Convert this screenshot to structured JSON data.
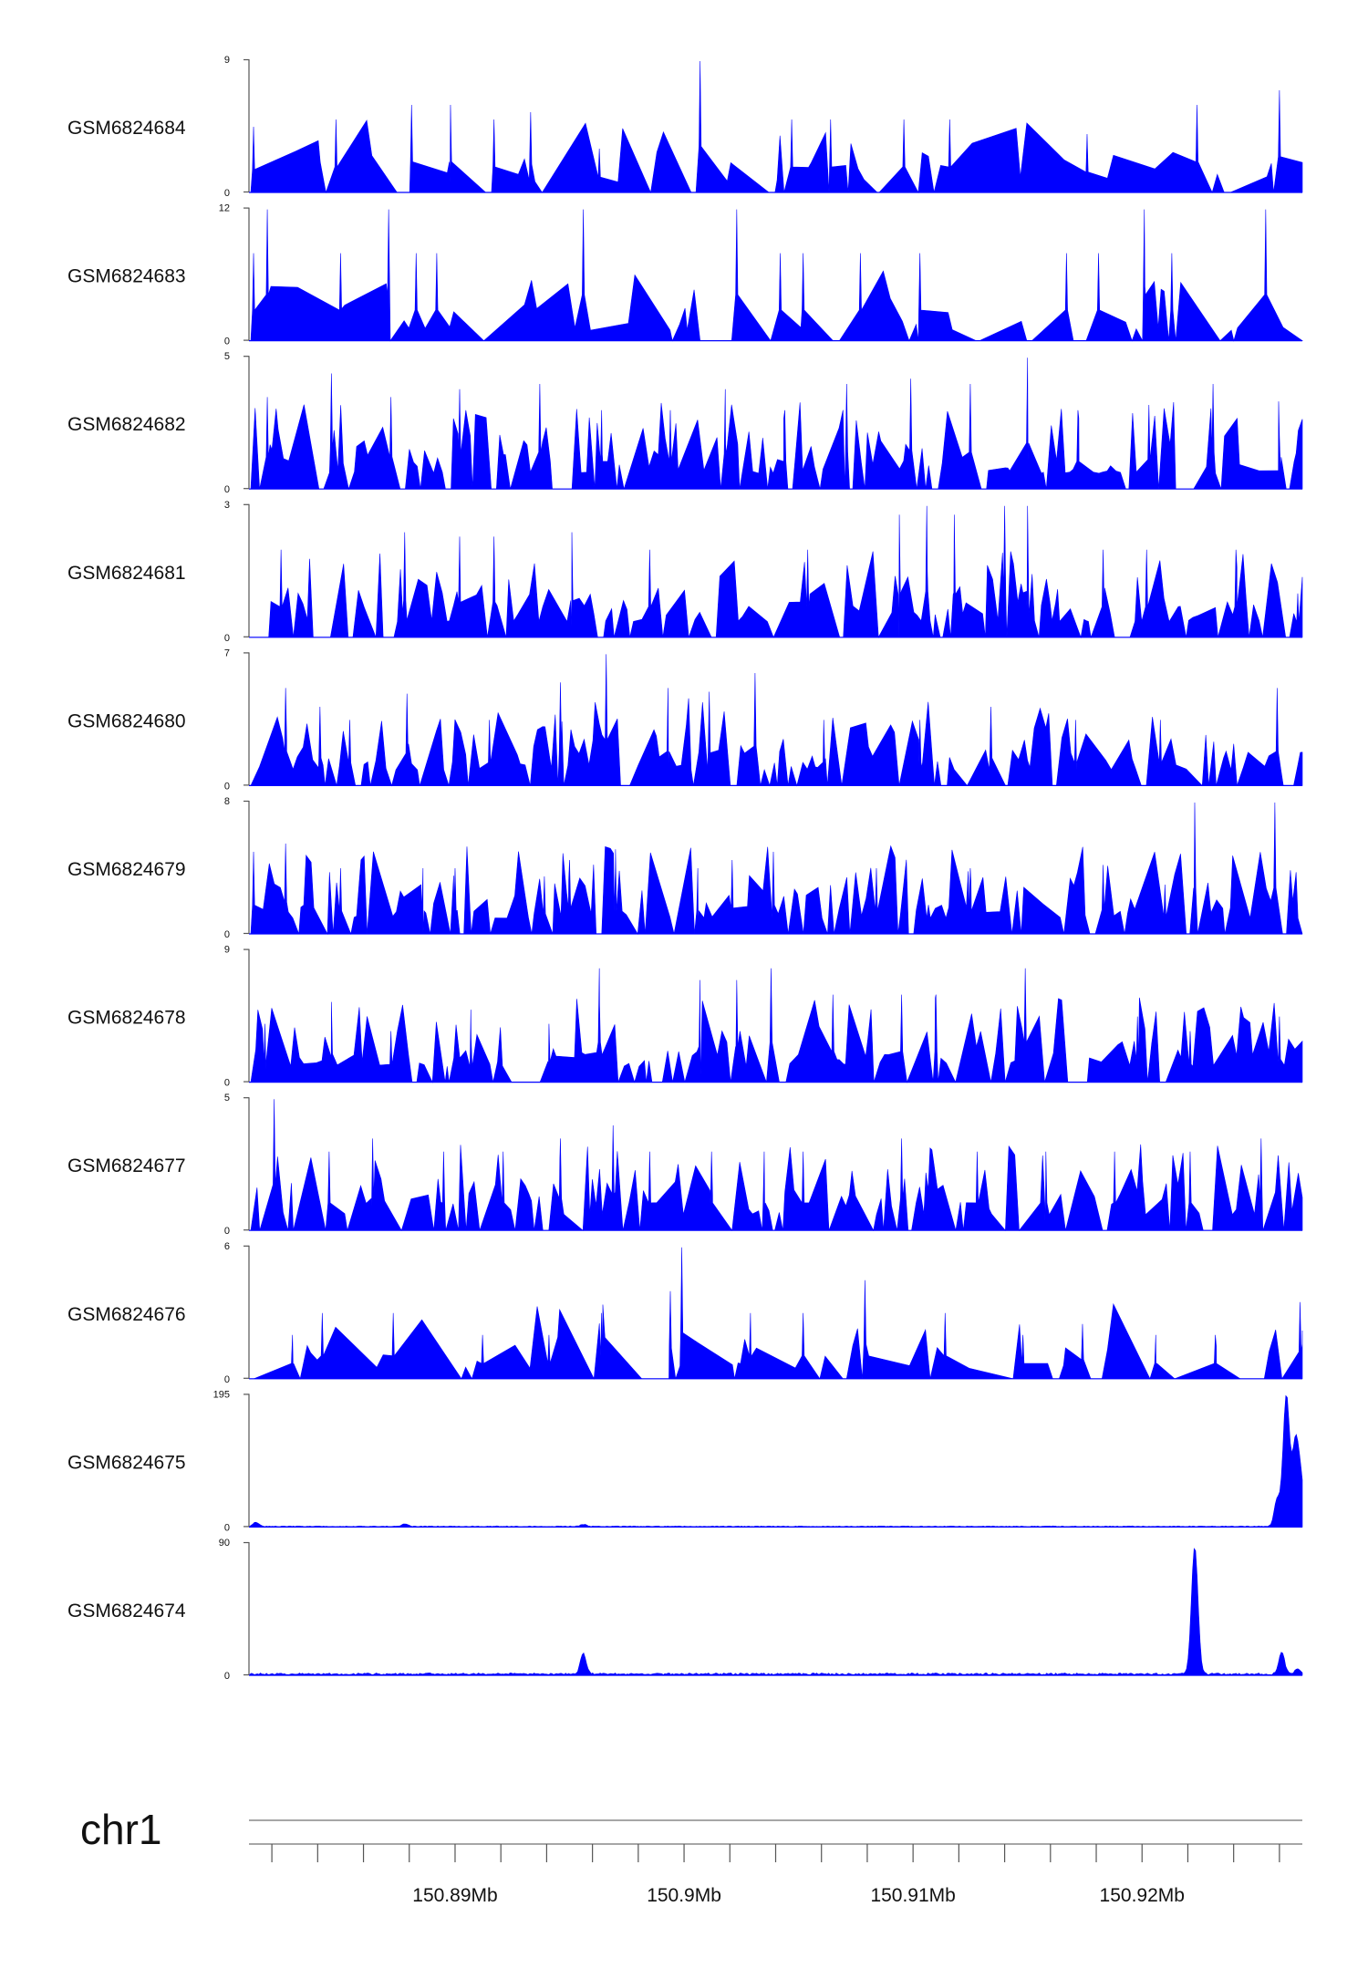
{
  "chart_data": {
    "type": "area",
    "title": "",
    "color": "#0000ff",
    "x_axis": {
      "chromosome": "chr1",
      "range_bp": [
        150881000,
        150927000
      ],
      "major_ticks": [
        {
          "pos": 150890000,
          "label": "150.89Mb"
        },
        {
          "pos": 150900000,
          "label": "150.9Mb"
        },
        {
          "pos": 150910000,
          "label": "150.91Mb"
        },
        {
          "pos": 150920000,
          "label": "150.92Mb"
        }
      ],
      "minor_tick_step_bp": 2000
    },
    "tracks": [
      {
        "name": "GSM6824684",
        "ymax": 9,
        "ymin_label": "0",
        "ymax_label": "9",
        "style": "sparse",
        "peaks": [
          [
            150881200,
            4.5
          ],
          [
            150884800,
            5.0
          ],
          [
            150888100,
            6.0
          ],
          [
            150889800,
            6.0
          ],
          [
            150891700,
            5.0
          ],
          [
            150893300,
            5.5
          ],
          [
            150896300,
            3.0
          ],
          [
            150900700,
            9.0
          ],
          [
            150904700,
            5.0
          ],
          [
            150906400,
            5.0
          ],
          [
            150909600,
            5.0
          ],
          [
            150911600,
            5.0
          ],
          [
            150917600,
            4.0
          ],
          [
            150922400,
            6.0
          ],
          [
            150926000,
            7.0
          ]
        ]
      },
      {
        "name": "GSM6824683",
        "ymax": 12,
        "ymin_label": "0",
        "ymax_label": "12",
        "style": "sparse",
        "peaks": [
          [
            150881200,
            8.0
          ],
          [
            150881800,
            12.0
          ],
          [
            150885000,
            8.0
          ],
          [
            150887100,
            12.0
          ],
          [
            150888300,
            8.0
          ],
          [
            150889200,
            8.0
          ],
          [
            150895600,
            12.0
          ],
          [
            150902300,
            12.0
          ],
          [
            150904200,
            8.0
          ],
          [
            150905200,
            8.0
          ],
          [
            150907700,
            8.0
          ],
          [
            150910300,
            8.0
          ],
          [
            150916700,
            8.0
          ],
          [
            150918100,
            8.0
          ],
          [
            150920100,
            12.0
          ],
          [
            150921300,
            8.0
          ],
          [
            150925400,
            12.0
          ]
        ]
      },
      {
        "name": "GSM6824682",
        "ymax": 5,
        "ymin_label": "0",
        "ymax_label": "5",
        "style": "dense",
        "peaks": [
          [
            150881800,
            3.5
          ],
          [
            150884600,
            4.4
          ],
          [
            150887200,
            3.5
          ],
          [
            150890200,
            3.8
          ],
          [
            150893700,
            4.0
          ],
          [
            150896400,
            3.0
          ],
          [
            150899400,
            3.0
          ],
          [
            150901800,
            3.8
          ],
          [
            150904400,
            3.0
          ],
          [
            150907100,
            4.0
          ],
          [
            150909900,
            4.2
          ],
          [
            150912500,
            4.0
          ],
          [
            150915000,
            5.0
          ],
          [
            150917200,
            3.0
          ],
          [
            150920300,
            3.2
          ],
          [
            150923100,
            4.0
          ],
          [
            150926000,
            2.0
          ]
        ]
      },
      {
        "name": "GSM6824681",
        "ymax": 3,
        "ymin_label": "0",
        "ymax_label": "3",
        "style": "dense",
        "peaks": [
          [
            150882400,
            2.0
          ],
          [
            150887800,
            2.4
          ],
          [
            150890200,
            2.3
          ],
          [
            150891700,
            2.3
          ],
          [
            150895100,
            2.4
          ],
          [
            150898500,
            2.0
          ],
          [
            150905400,
            2.0
          ],
          [
            150909400,
            2.8
          ],
          [
            150910600,
            3.0
          ],
          [
            150911800,
            2.8
          ],
          [
            150914000,
            3.0
          ],
          [
            150915000,
            3.0
          ],
          [
            150918300,
            2.0
          ],
          [
            150920200,
            2.0
          ],
          [
            150924100,
            2.0
          ],
          [
            150926800,
            1.0
          ]
        ]
      },
      {
        "name": "GSM6824680",
        "ymax": 7,
        "ymin_label": "0",
        "ymax_label": "7",
        "style": "dense",
        "peaks": [
          [
            150882600,
            5.2
          ],
          [
            150884100,
            4.2
          ],
          [
            150885400,
            3.5
          ],
          [
            150887900,
            4.9
          ],
          [
            150891500,
            3.5
          ],
          [
            150894600,
            5.5
          ],
          [
            150896600,
            7.0
          ],
          [
            150899300,
            5.2
          ],
          [
            150901100,
            5.0
          ],
          [
            150903100,
            6.0
          ],
          [
            150906100,
            3.5
          ],
          [
            150910300,
            3.5
          ],
          [
            150913400,
            4.2
          ],
          [
            150917100,
            3.5
          ],
          [
            150920800,
            3.5
          ],
          [
            150925900,
            5.2
          ]
        ]
      },
      {
        "name": "GSM6824679",
        "ymax": 8,
        "ymin_label": "0",
        "ymax_label": "8",
        "style": "dense",
        "peaks": [
          [
            150881200,
            5.0
          ],
          [
            150882600,
            5.5
          ],
          [
            150885000,
            4.0
          ],
          [
            150888600,
            4.0
          ],
          [
            150890000,
            4.0
          ],
          [
            150893900,
            3.5
          ],
          [
            150895000,
            4.5
          ],
          [
            150897000,
            4.0
          ],
          [
            150900600,
            4.0
          ],
          [
            150902100,
            4.5
          ],
          [
            150903900,
            5.0
          ],
          [
            150908400,
            4.0
          ],
          [
            150912500,
            4.0
          ],
          [
            150918300,
            4.2
          ],
          [
            150921000,
            3.0
          ],
          [
            150922300,
            8.0
          ],
          [
            150925800,
            8.0
          ]
        ]
      },
      {
        "name": "GSM6824678",
        "ymax": 9,
        "ymin_label": "0",
        "ymax_label": "9",
        "style": "dense",
        "peaks": [
          [
            150881700,
            4.0
          ],
          [
            150884600,
            5.5
          ],
          [
            150887200,
            3.5
          ],
          [
            150890700,
            3.0
          ],
          [
            150894100,
            4.0
          ],
          [
            150896300,
            7.8
          ],
          [
            150900700,
            7.0
          ],
          [
            150902300,
            7.0
          ],
          [
            150903800,
            7.8
          ],
          [
            150906500,
            6.0
          ],
          [
            150909500,
            6.0
          ],
          [
            150911000,
            6.0
          ],
          [
            150914900,
            7.8
          ],
          [
            150919800,
            4.5
          ],
          [
            150922100,
            3.5
          ],
          [
            150926000,
            4.5
          ]
        ]
      },
      {
        "name": "GSM6824677",
        "ymax": 5,
        "ymin_label": "0",
        "ymax_label": "5",
        "style": "dense",
        "peaks": [
          [
            150882100,
            5.0
          ],
          [
            150884500,
            3.0
          ],
          [
            150886400,
            3.5
          ],
          [
            150889500,
            3.0
          ],
          [
            150892100,
            3.0
          ],
          [
            150894600,
            3.5
          ],
          [
            150896900,
            4.0
          ],
          [
            150898500,
            3.0
          ],
          [
            150901200,
            3.0
          ],
          [
            150903500,
            3.0
          ],
          [
            150905200,
            3.0
          ],
          [
            150909500,
            3.5
          ],
          [
            150912800,
            3.0
          ],
          [
            150915800,
            3.0
          ],
          [
            150918800,
            3.0
          ],
          [
            150922100,
            3.0
          ],
          [
            150925200,
            3.5
          ]
        ]
      },
      {
        "name": "GSM6824676",
        "ymax": 6,
        "ymin_label": "0",
        "ymax_label": "6",
        "style": "sparse",
        "peaks": [
          [
            150882900,
            2.0
          ],
          [
            150884200,
            3.0
          ],
          [
            150887300,
            3.0
          ],
          [
            150891200,
            2.0
          ],
          [
            150894100,
            2.0
          ],
          [
            150896400,
            3.0
          ],
          [
            150899400,
            4.0
          ],
          [
            150899900,
            6.0
          ],
          [
            150902900,
            3.0
          ],
          [
            150905200,
            3.0
          ],
          [
            150907900,
            4.5
          ],
          [
            150911400,
            3.0
          ],
          [
            150914800,
            2.0
          ],
          [
            150917400,
            2.5
          ],
          [
            150920600,
            2.0
          ],
          [
            150923200,
            2.0
          ],
          [
            150926900,
            3.5
          ]
        ]
      },
      {
        "name": "GSM6824675",
        "ymax": 195,
        "ymin_label": "0",
        "ymax_label": "195",
        "style": "smooth",
        "peaks": [
          [
            150881300,
            6.0
          ],
          [
            150887800,
            4.0
          ],
          [
            150895600,
            3.0
          ],
          [
            150925900,
            40.0
          ],
          [
            150926300,
            195.0
          ],
          [
            150926700,
            120.0
          ],
          [
            150926950,
            60.0
          ]
        ]
      },
      {
        "name": "GSM6824674",
        "ymax": 90,
        "ymin_label": "0",
        "ymax_label": "90",
        "style": "smooth",
        "peaks": [
          [
            150895600,
            14.0
          ],
          [
            150922300,
            88.0
          ],
          [
            150926100,
            15.0
          ],
          [
            150926800,
            4.0
          ]
        ]
      }
    ]
  }
}
